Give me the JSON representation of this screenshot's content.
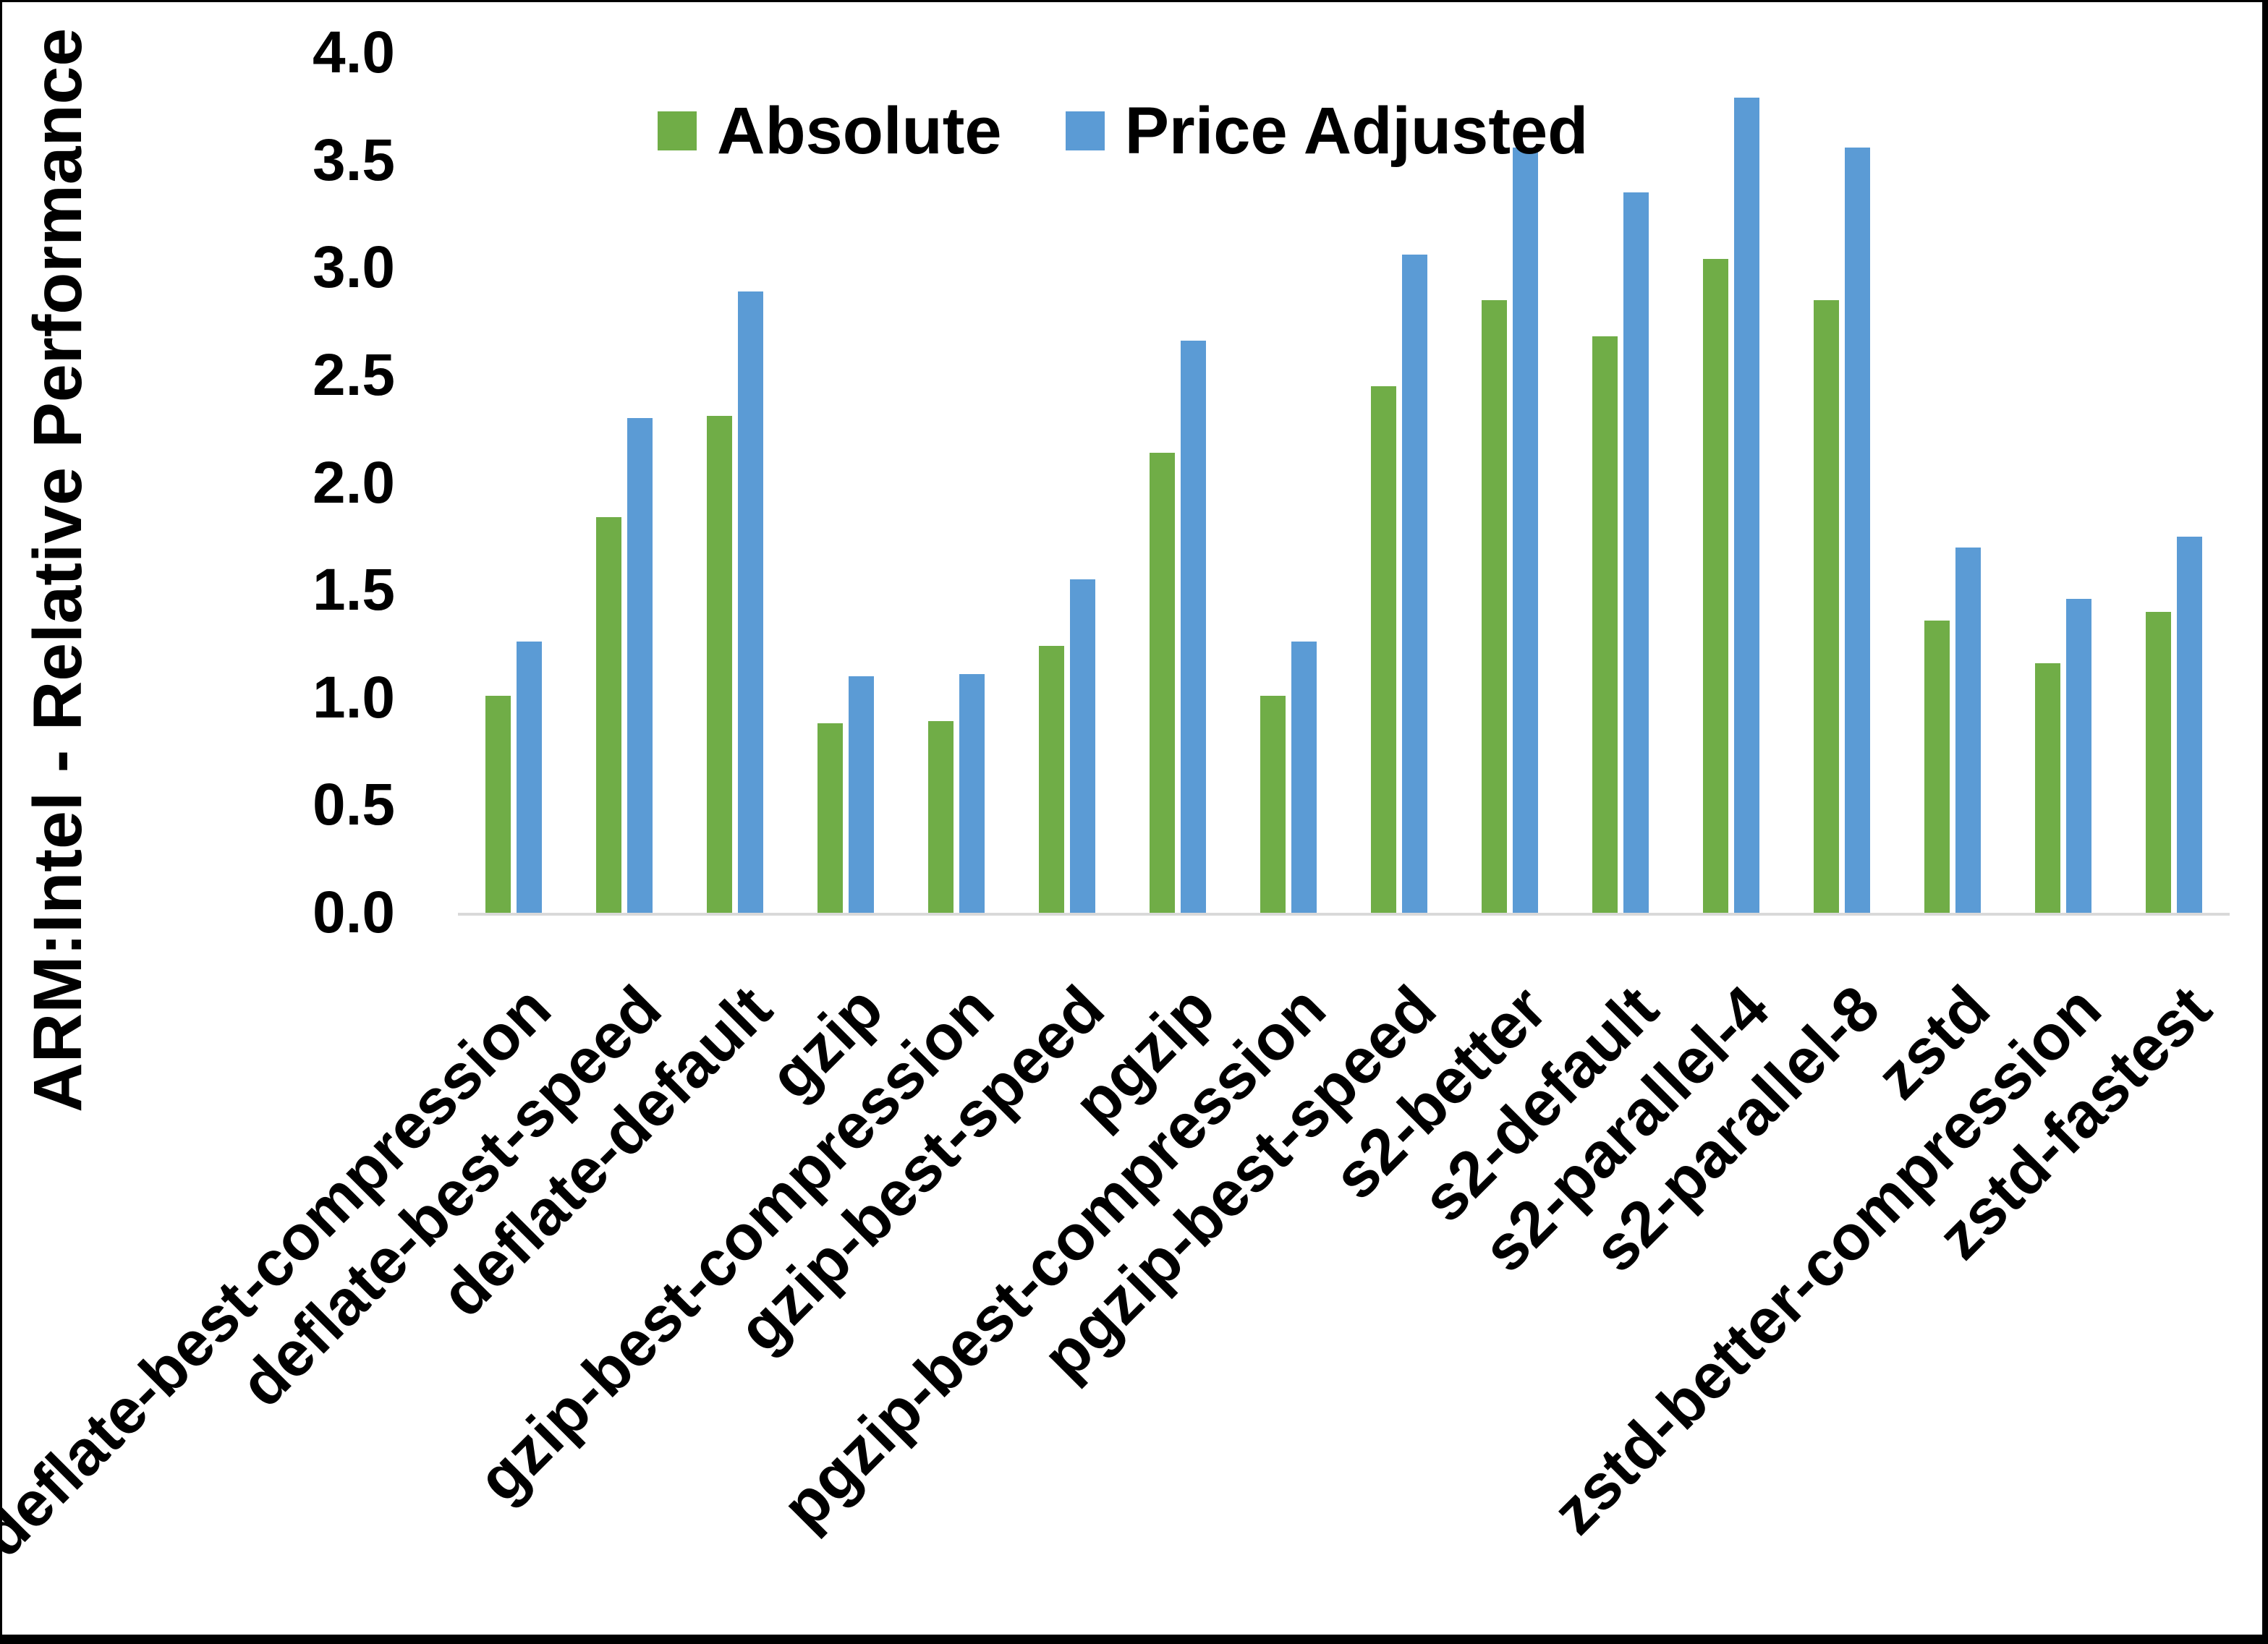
{
  "figure": {
    "ylabel": "ARM:Intel - Relative Performance"
  },
  "legend": {
    "items": [
      {
        "label": "Absolute",
        "color": "#70AD47"
      },
      {
        "label": "Price Adjusted",
        "color": "#5B9BD5"
      }
    ]
  },
  "chart_data": {
    "type": "bar",
    "title": "",
    "xlabel": "",
    "ylabel": "ARM:Intel - Relative Performance",
    "ylim": [
      0.0,
      4.0
    ],
    "yticks": [
      "0.0",
      "0.5",
      "1.0",
      "1.5",
      "2.0",
      "2.5",
      "3.0",
      "3.5",
      "4.0"
    ],
    "grid": false,
    "legend_position": "top-center",
    "categories": [
      "deflate-best-compression",
      "deflate-best-speed",
      "deflate-default",
      "gzip",
      "gzip-best-compression",
      "gzip-best-speed",
      "pgzip",
      "pgzip-best-compression",
      "pgzip-best-speed",
      "s2-better",
      "s2-default",
      "s2-parallel-4",
      "s2-parallel-8",
      "zstd",
      "zstd-better-compression",
      "zstd-fastest"
    ],
    "series": [
      {
        "name": "Absolute",
        "color": "#70AD47",
        "values": [
          1.01,
          1.84,
          2.31,
          0.88,
          0.89,
          1.24,
          2.14,
          1.01,
          2.45,
          2.85,
          2.68,
          3.04,
          2.85,
          1.36,
          1.16,
          1.4
        ]
      },
      {
        "name": "Price Adjusted",
        "color": "#5B9BD5",
        "values": [
          1.26,
          2.3,
          2.89,
          1.1,
          1.11,
          1.55,
          2.66,
          1.26,
          3.06,
          3.56,
          3.35,
          3.79,
          3.56,
          1.7,
          1.46,
          1.75
        ]
      }
    ],
    "colors": {
      "baseline": "#D9D9D9",
      "text": "#000000",
      "frame": "#000000"
    }
  }
}
